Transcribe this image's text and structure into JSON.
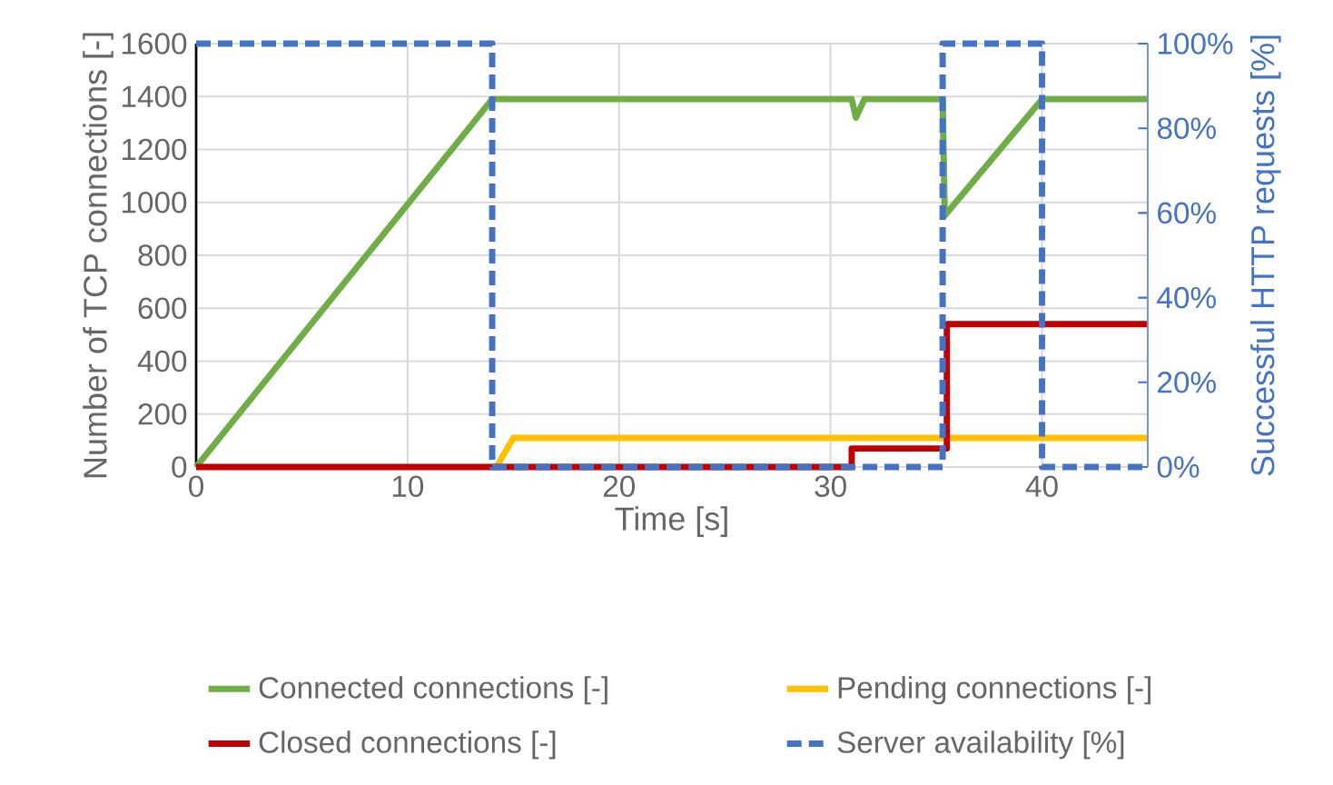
{
  "chart_data": {
    "type": "line",
    "xlabel": "Time [s]",
    "ylabel": "Number of TCP connections [-]",
    "y2label": "Successful HTTP requests [%]",
    "xlim": [
      0,
      45
    ],
    "xticks": [
      0,
      10,
      20,
      30,
      40
    ],
    "ylim": [
      0,
      1600
    ],
    "yticks": [
      0,
      200,
      400,
      600,
      800,
      1000,
      1200,
      1400,
      1600
    ],
    "y2lim": [
      0,
      100
    ],
    "y2ticks": [
      {
        "value": 0,
        "label": "0%"
      },
      {
        "value": 20,
        "label": "20%"
      },
      {
        "value": 40,
        "label": "40%"
      },
      {
        "value": 60,
        "label": "60%"
      },
      {
        "value": 80,
        "label": "80%"
      },
      {
        "value": 100,
        "label": "100%"
      }
    ],
    "grid": true,
    "legend": "bottom",
    "marker": "none",
    "series": [
      {
        "name": "Connected connections [-]",
        "color": "#70ad47",
        "line_style": "solid",
        "x": [
          0,
          14,
          31,
          31.2,
          31.6,
          35.3,
          35.4,
          40,
          45
        ],
        "values": [
          0,
          1390,
          1390,
          1320,
          1390,
          1390,
          950,
          1390,
          1390
        ]
      },
      {
        "name": "Pending connections [-]",
        "color": "#ffc000",
        "line_style": "solid",
        "x": [
          14.2,
          15,
          45
        ],
        "values": [
          0,
          110,
          110
        ]
      },
      {
        "name": "Closed connections [-]",
        "color": "#c00000",
        "line_style": "solid",
        "x": [
          0,
          31,
          31,
          35.5,
          35.5,
          45
        ],
        "values": [
          0,
          0,
          70,
          70,
          540,
          540
        ]
      },
      {
        "name": "Server availability [%]",
        "color": "#4472c4",
        "line_style": "dashed",
        "axis": "y2",
        "x": [
          0,
          14,
          14,
          35.3,
          35.3,
          40,
          40,
          45
        ],
        "values": [
          100,
          100,
          0,
          0,
          100,
          100,
          0,
          0
        ]
      }
    ]
  }
}
